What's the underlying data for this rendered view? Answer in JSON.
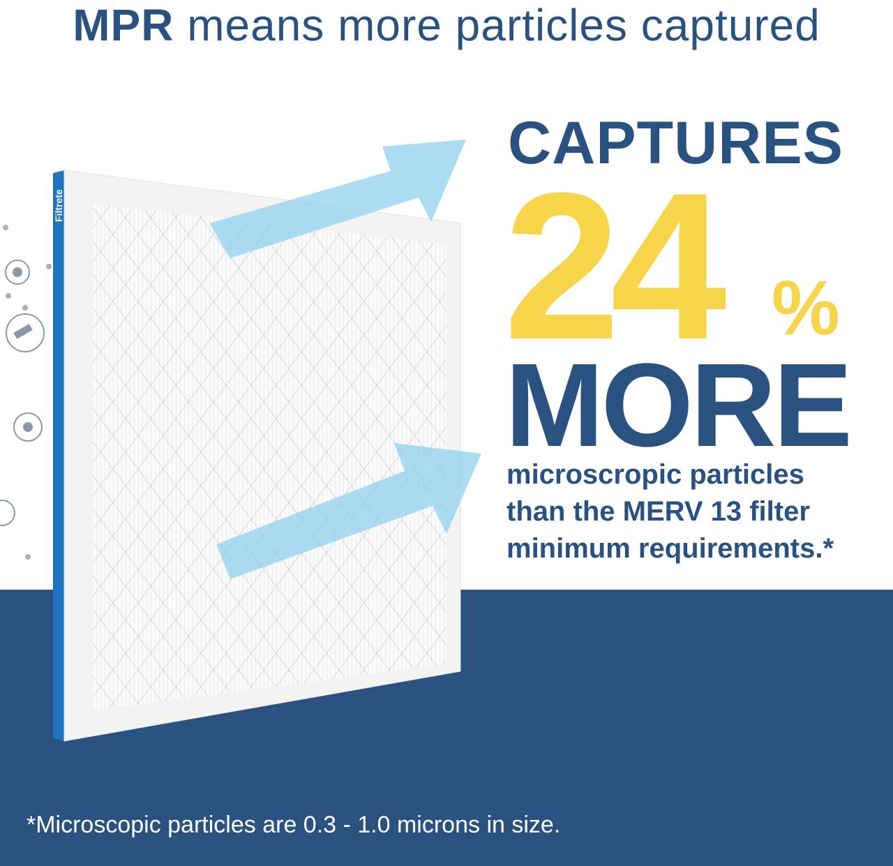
{
  "colors": {
    "navy": "#2a5281",
    "yellow": "#f7d54a",
    "arrow": "#9fd6f0",
    "filter_edge": "#1f74c0"
  },
  "title": {
    "bold": "MPR",
    "rest": " means more particles captured"
  },
  "brand_logo": "Filtrete",
  "headline": {
    "captures": "CAPTURES",
    "number": "24",
    "percent": "%",
    "more": "MORE"
  },
  "subtext": [
    "microscropic particles",
    "than the MERV 13 filter",
    "minimum requirements.*"
  ],
  "footnote": "*Microscopic particles are 0.3 - 1.0 microns in size.",
  "icons": [
    "gear-particle-icon",
    "spray-particle-icon",
    "gear-particle-icon",
    "pollen-particle-icon"
  ]
}
